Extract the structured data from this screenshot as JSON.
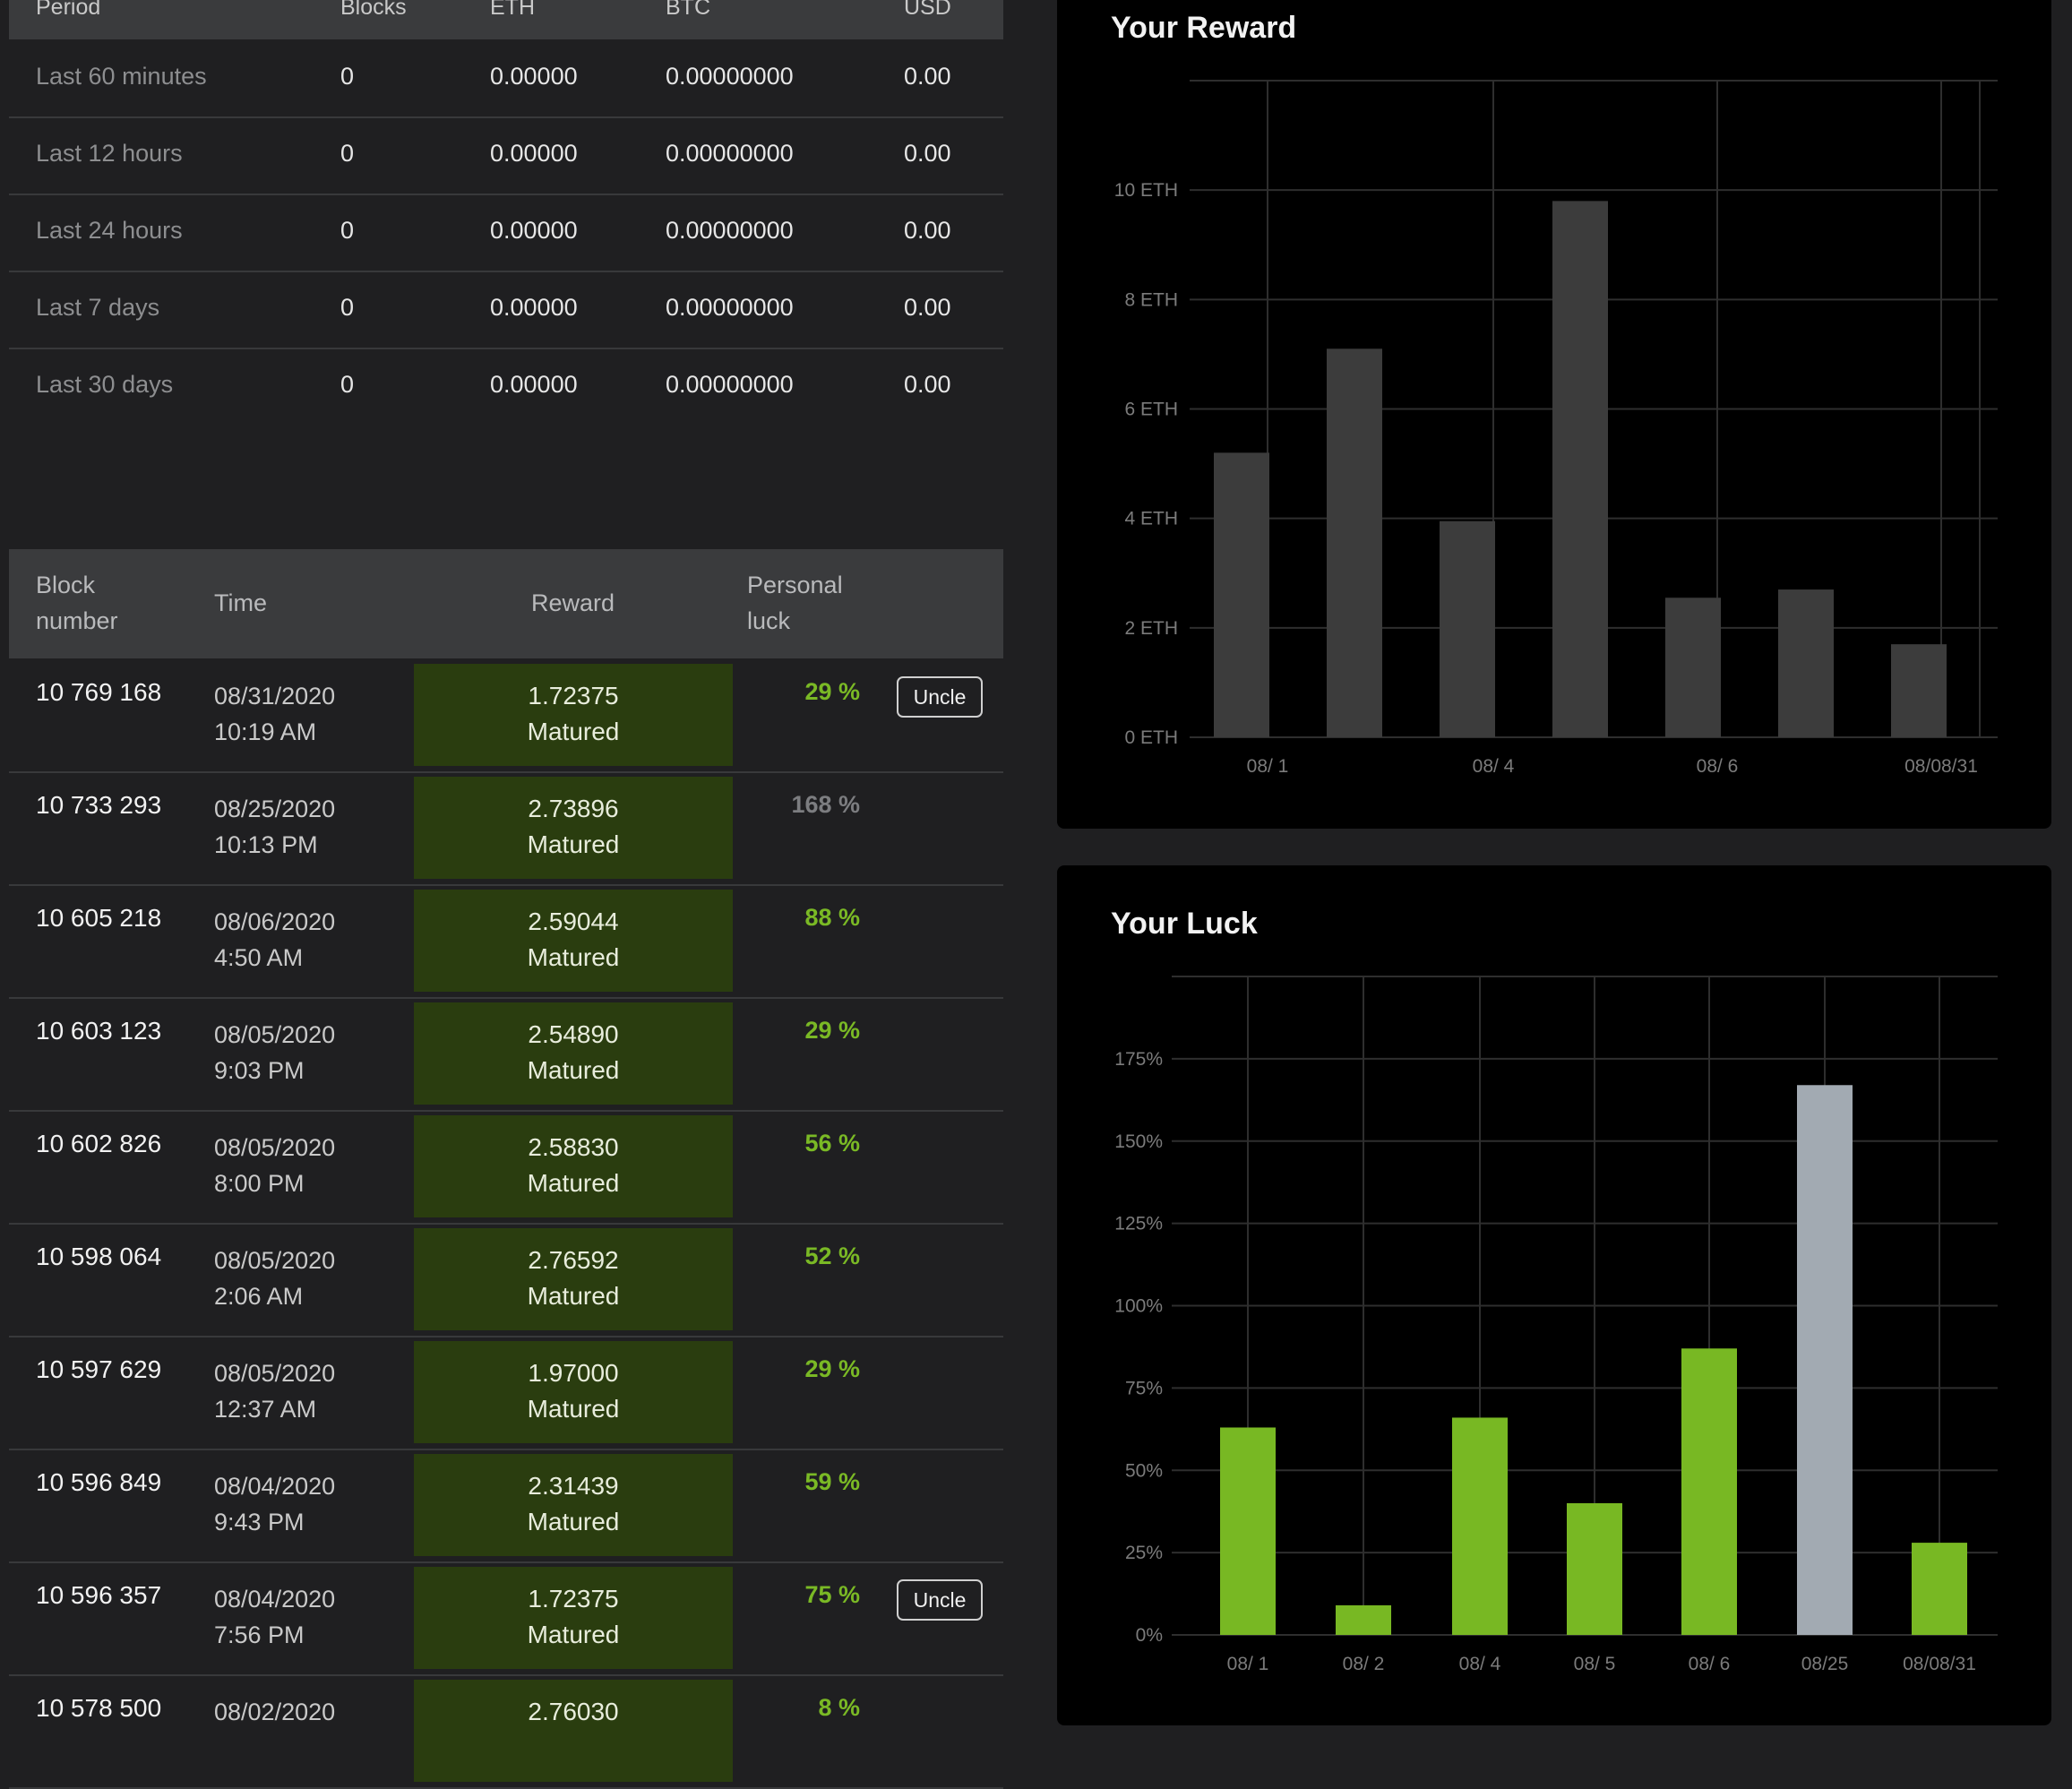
{
  "summary": {
    "headers": [
      "Period",
      "Blocks",
      "ETH",
      "BTC",
      "USD"
    ],
    "rows": [
      {
        "period": "Last 60 minutes",
        "blocks": "0",
        "eth": "0.00000",
        "btc": "0.00000000",
        "usd": "0.00"
      },
      {
        "period": "Last 12 hours",
        "blocks": "0",
        "eth": "0.00000",
        "btc": "0.00000000",
        "usd": "0.00"
      },
      {
        "period": "Last 24 hours",
        "blocks": "0",
        "eth": "0.00000",
        "btc": "0.00000000",
        "usd": "0.00"
      },
      {
        "period": "Last 7 days",
        "blocks": "0",
        "eth": "0.00000",
        "btc": "0.00000000",
        "usd": "0.00"
      },
      {
        "period": "Last 30 days",
        "blocks": "0",
        "eth": "0.00000",
        "btc": "0.00000000",
        "usd": "0.00"
      }
    ]
  },
  "blocks": {
    "headers": {
      "block_1": "Block",
      "block_2": "number",
      "time": "Time",
      "reward": "Reward",
      "luck_1": "Personal",
      "luck_2": "luck"
    },
    "rows": [
      {
        "number": "10 769 168",
        "date": "08/31/2020",
        "time": "10:19 AM",
        "reward": "1.72375",
        "status": "Matured",
        "luck": "29 %",
        "uncle": "Uncle"
      },
      {
        "number": "10 733 293",
        "date": "08/25/2020",
        "time": "10:13 PM",
        "reward": "2.73896",
        "status": "Matured",
        "luck": "168 %",
        "uncle": ""
      },
      {
        "number": "10 605 218",
        "date": "08/06/2020",
        "time": "4:50 AM",
        "reward": "2.59044",
        "status": "Matured",
        "luck": "88 %",
        "uncle": ""
      },
      {
        "number": "10 603 123",
        "date": "08/05/2020",
        "time": "9:03 PM",
        "reward": "2.54890",
        "status": "Matured",
        "luck": "29 %",
        "uncle": ""
      },
      {
        "number": "10 602 826",
        "date": "08/05/2020",
        "time": "8:00 PM",
        "reward": "2.58830",
        "status": "Matured",
        "luck": "56 %",
        "uncle": ""
      },
      {
        "number": "10 598 064",
        "date": "08/05/2020",
        "time": "2:06 AM",
        "reward": "2.76592",
        "status": "Matured",
        "luck": "52 %",
        "uncle": ""
      },
      {
        "number": "10 597 629",
        "date": "08/05/2020",
        "time": "12:37 AM",
        "reward": "1.97000",
        "status": "Matured",
        "luck": "29 %",
        "uncle": ""
      },
      {
        "number": "10 596 849",
        "date": "08/04/2020",
        "time": "9:43 PM",
        "reward": "2.31439",
        "status": "Matured",
        "luck": "59 %",
        "uncle": ""
      },
      {
        "number": "10 596 357",
        "date": "08/04/2020",
        "time": "7:56 PM",
        "reward": "1.72375",
        "status": "Matured",
        "luck": "75 %",
        "uncle": "Uncle"
      },
      {
        "number": "10 578 500",
        "date": "08/02/2020",
        "time": "",
        "reward": "2.76030",
        "status": "",
        "luck": "8 %",
        "uncle": ""
      }
    ]
  },
  "colors": {
    "luck_good": "#7ab925",
    "luck_high": "#7c7d80",
    "reward_cell": "#2a3d0f",
    "reward_bar": "#3c3c3c",
    "luck_bar": "#78b823",
    "luck_bar_high": "#a2aab2"
  },
  "reward_chart": {
    "title": "Your Reward",
    "chart_data": {
      "type": "bar",
      "title": "Your Reward",
      "y_ticks": [
        "0 ETH",
        "2 ETH",
        "4 ETH",
        "6 ETH",
        "8 ETH",
        "10 ETH"
      ],
      "ylim": [
        0,
        12
      ],
      "values": [
        5.2,
        7.1,
        3.95,
        9.8,
        2.55,
        2.7,
        1.7
      ],
      "x_tick_labels": [
        "08/ 1",
        "08/ 4",
        "08/ 6",
        "08/08/31"
      ],
      "grid": true
    }
  },
  "luck_chart": {
    "title": "Your Luck",
    "chart_data": {
      "type": "bar",
      "title": "Your Luck",
      "categories": [
        "08/ 1",
        "08/ 2",
        "08/ 4",
        "08/ 5",
        "08/ 6",
        "08/25",
        "08/08/31"
      ],
      "y_ticks": [
        "0%",
        "25%",
        "50%",
        "75%",
        "100%",
        "125%",
        "150%",
        "175%"
      ],
      "ylim": [
        0,
        200
      ],
      "values": [
        63,
        9,
        66,
        40,
        87,
        167,
        28
      ],
      "highlight_index": 5,
      "grid": true
    }
  }
}
